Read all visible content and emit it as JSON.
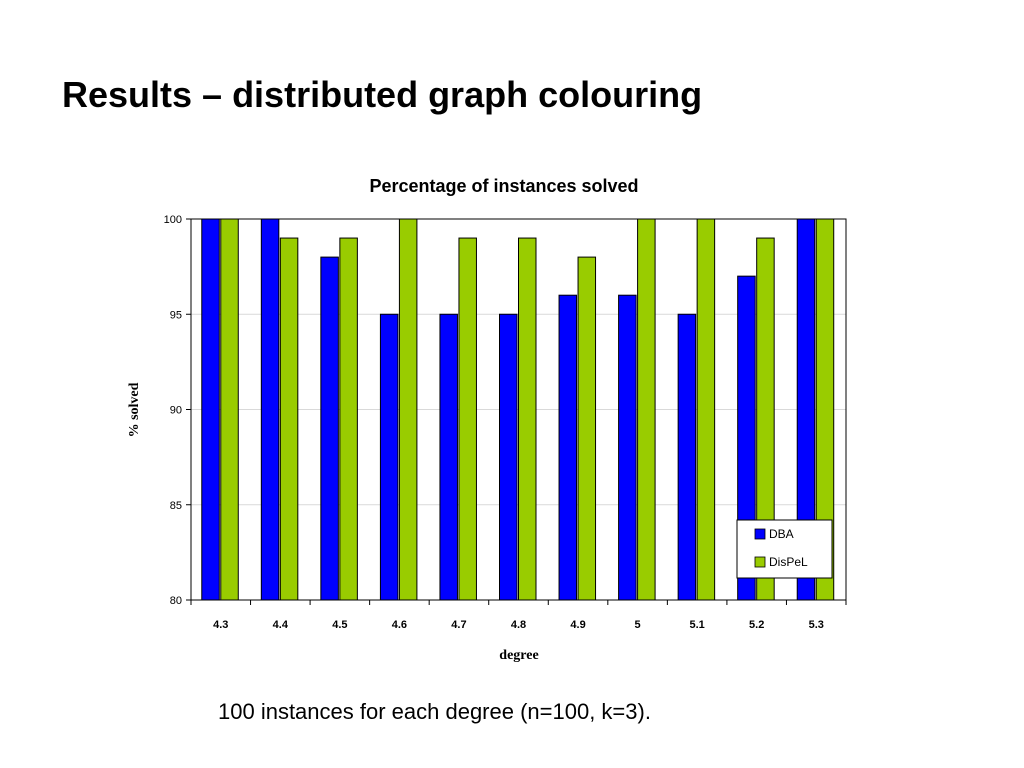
{
  "slide": {
    "title": "Results – distributed graph colouring",
    "caption": "100 instances for each degree (n=100, k=3)."
  },
  "chart_data": {
    "type": "bar",
    "title": "Percentage of instances solved",
    "xlabel": "degree",
    "ylabel": "% solved",
    "categories": [
      "4.3",
      "4.4",
      "4.5",
      "4.6",
      "4.7",
      "4.8",
      "4.9",
      "5",
      "5.1",
      "5.2",
      "5.3"
    ],
    "series": [
      {
        "name": "DBA",
        "color": "#0000ff",
        "values": [
          100,
          100,
          98,
          95,
          95,
          95,
          96,
          96,
          95,
          97,
          100
        ]
      },
      {
        "name": "DisPeL",
        "color": "#99cc00",
        "values": [
          100,
          99,
          99,
          100,
          99,
          99,
          98,
          100,
          100,
          99,
          100
        ]
      }
    ],
    "ylim": [
      80,
      100
    ],
    "yticks": [
      80,
      85,
      90,
      95,
      100
    ],
    "grid": true,
    "legend": "bottom-right"
  }
}
